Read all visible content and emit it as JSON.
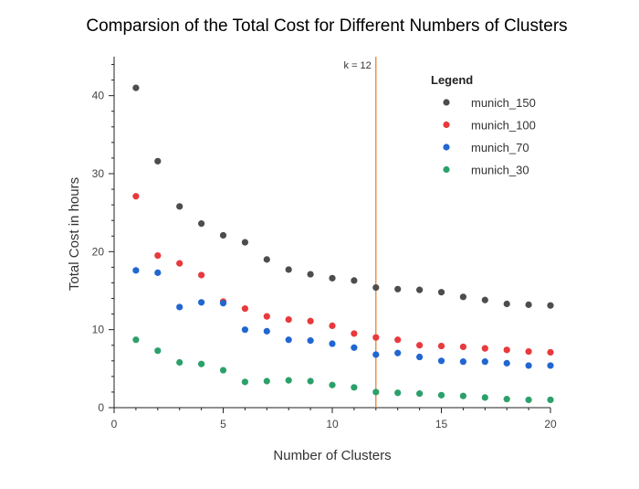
{
  "chart_data": {
    "type": "scatter",
    "title": "Comparsion of the Total Cost for Different Numbers of Clusters",
    "xlabel": "Number of Clusters",
    "ylabel": "Total Cost in hours",
    "xlim": [
      0,
      20
    ],
    "ylim": [
      0,
      45
    ],
    "xticks": [
      0,
      5,
      10,
      15,
      20
    ],
    "yticks": [
      0,
      10,
      20,
      30,
      40
    ],
    "grid": false,
    "legend": {
      "title": "Legend",
      "position": "top-right"
    },
    "reference_line": {
      "x": 12,
      "label": "k = 12",
      "color": "#e07b28"
    },
    "x": [
      1,
      2,
      3,
      4,
      5,
      6,
      7,
      8,
      9,
      10,
      11,
      12,
      13,
      14,
      15,
      16,
      17,
      18,
      19,
      20
    ],
    "series": [
      {
        "name": "munich_150",
        "color": "#4d4d4d",
        "values": [
          41.0,
          31.6,
          25.8,
          23.6,
          22.1,
          21.2,
          19.0,
          17.7,
          17.1,
          16.6,
          16.3,
          15.4,
          15.2,
          15.1,
          14.8,
          14.2,
          13.8,
          13.3,
          13.2,
          13.1
        ]
      },
      {
        "name": "munich_100",
        "color": "#e8393c",
        "values": [
          27.1,
          19.5,
          18.5,
          17.0,
          13.6,
          12.7,
          11.7,
          11.3,
          11.1,
          10.5,
          9.5,
          9.0,
          8.7,
          8.0,
          7.9,
          7.8,
          7.6,
          7.4,
          7.2,
          7.1
        ]
      },
      {
        "name": "munich_70",
        "color": "#2166d1",
        "values": [
          17.6,
          17.3,
          12.9,
          13.5,
          13.4,
          10.0,
          9.8,
          8.7,
          8.6,
          8.2,
          7.7,
          6.8,
          7.0,
          6.5,
          6.0,
          5.9,
          5.9,
          5.7,
          5.4,
          5.4
        ]
      },
      {
        "name": "munich_30",
        "color": "#2ca06a",
        "values": [
          8.7,
          7.3,
          5.8,
          5.6,
          4.8,
          3.3,
          3.4,
          3.5,
          3.4,
          2.9,
          2.6,
          2.0,
          1.9,
          1.8,
          1.6,
          1.5,
          1.3,
          1.1,
          1.0,
          1.0
        ]
      }
    ]
  }
}
